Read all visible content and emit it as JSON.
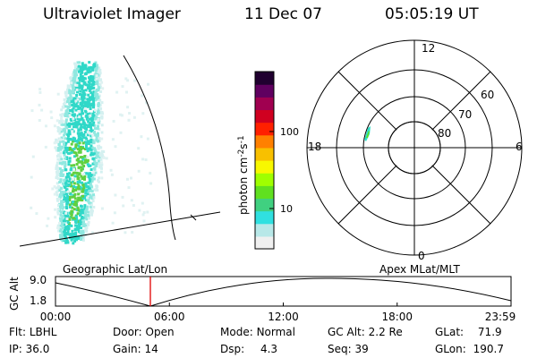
{
  "header": {
    "instrument": "Ultraviolet Imager",
    "date": "11 Dec 07",
    "time": "05:05:19 UT"
  },
  "colorbar": {
    "label": "photon cm",
    "label_exp1": "-2",
    "label_mid": "s",
    "label_exp2": "-1",
    "ticks": [
      {
        "value": 100,
        "label": "100"
      },
      {
        "value": 10,
        "label": "10"
      }
    ],
    "range": [
      3,
      600
    ],
    "scale": "log",
    "colors": [
      "#f0f0f0",
      "#b8e8e8",
      "#30e0e0",
      "#40d080",
      "#60e020",
      "#a0ff00",
      "#f8f800",
      "#f8c000",
      "#ff8000",
      "#ff2000",
      "#d00020",
      "#a00050",
      "#600060",
      "#200030"
    ]
  },
  "polar": {
    "mlt_labels": {
      "top": "12",
      "left": "18",
      "right": "6",
      "bottom": "0"
    },
    "lat_labels": [
      "60",
      "70",
      "80"
    ]
  },
  "timeline": {
    "left_title": "Geographic Lat/Lon",
    "right_title": "Apex MLat/MLT",
    "ylabel": "GC Alt",
    "ytick_top": "9.0",
    "ytick_bottom": "1.8",
    "xticks": [
      "00:00",
      "06:00",
      "12:00",
      "18:00",
      "23:59"
    ],
    "marker_time": "05:05",
    "marker_color": "#e00000"
  },
  "info": {
    "filter_label": "Flt:",
    "filter_value": "LBHL",
    "ip_label": "IP:",
    "ip_value": "36.0",
    "door_label": "Door:",
    "door_value": "Open",
    "gain_label": "Gain:",
    "gain_value": "14",
    "mode_label": "Mode:",
    "mode_value": "Normal",
    "dsp_label": "Dsp:",
    "dsp_value": "4.3",
    "gcalt_label": "GC Alt:",
    "gcalt_value": "2.2 Re",
    "seq_label": "Seq:",
    "seq_value": "39",
    "glat_label": "GLat:",
    "glat_value": "71.9",
    "glon_label": "GLon:",
    "glon_value": "190.7"
  }
}
